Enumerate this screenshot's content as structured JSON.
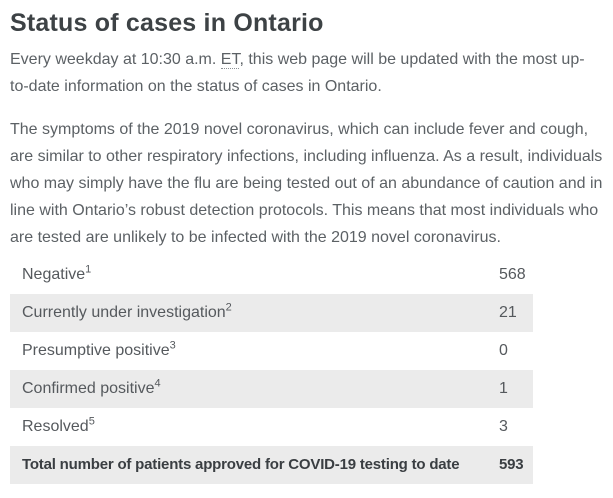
{
  "page": {
    "title": "Status of cases in Ontario",
    "intro": {
      "before_abbr": "Every weekday at 10:30 a.m. ",
      "abbr": "ET",
      "after_abbr": ", this web page will be updated with the most up-to-date information on the status of cases in Ontario."
    },
    "symptoms_paragraph": "The symptoms of the 2019 novel coronavirus, which can include fever and cough, are similar to other respiratory infections, including influenza. As a result, individuals who may simply have the flu are being tested out of an abundance of caution and in line with Ontario’s robust detection protocols. This means that most individuals who are tested are unlikely to be infected with the 2019 novel coronavirus."
  },
  "table": {
    "rows": [
      {
        "label": "Negative",
        "footnote": "1",
        "value": "568"
      },
      {
        "label": "Currently under investigation",
        "footnote": "2",
        "value": "21"
      },
      {
        "label": "Presumptive positive",
        "footnote": "3",
        "value": "0"
      },
      {
        "label": "Confirmed positive",
        "footnote": "4",
        "value": "1"
      },
      {
        "label": "Resolved",
        "footnote": "5",
        "value": "3"
      },
      {
        "label": "Total number of patients approved for COVID-19 testing to date",
        "footnote": "",
        "value": "593"
      }
    ]
  },
  "colors": {
    "heading_text": "#3d4245",
    "body_text": "#5c6165",
    "table_text": "#55595d",
    "total_row_text": "#3a3e42",
    "shaded_row_bg": "#ebebeb",
    "page_bg": "#ffffff"
  }
}
